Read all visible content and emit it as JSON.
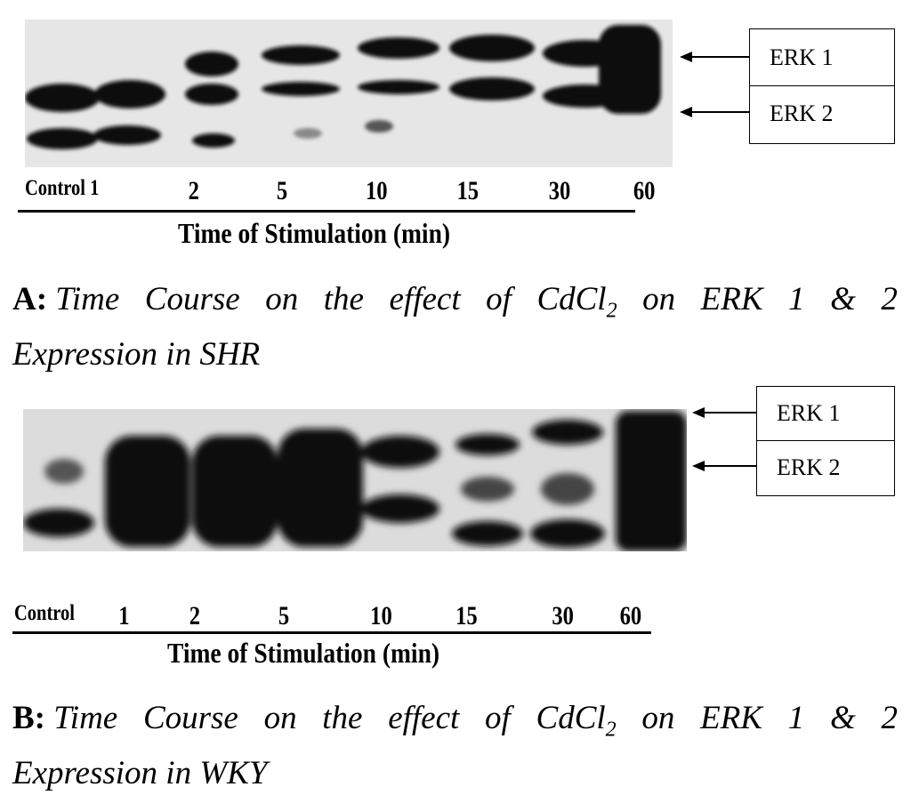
{
  "panels": [
    {
      "id": "A",
      "lanes": [
        "Control 1",
        "2",
        "5",
        "10",
        "15",
        "30",
        "60"
      ],
      "axis_title": "Time of Stimulation (min)",
      "legend": [
        "ERK 1",
        "ERK 2"
      ],
      "caption": {
        "letter": "A:",
        "words": [
          "Time",
          "Course",
          "on",
          "the",
          "effect",
          "of",
          "CdCl",
          "on",
          "ERK",
          "1",
          "&",
          "2"
        ],
        "subscript": "2",
        "line2": "Expression in SHR"
      }
    },
    {
      "id": "B",
      "lanes": [
        "Control",
        "1",
        "2",
        "5",
        "10",
        "15",
        "30",
        "60"
      ],
      "axis_title": "Time of Stimulation (min)",
      "legend": [
        "ERK 1",
        "ERK 2"
      ],
      "caption": {
        "letter": "B:",
        "words": [
          "Time",
          "Course",
          "on",
          "the",
          "effect",
          "of",
          "CdCl",
          "on",
          "ERK",
          "1",
          "&",
          "2"
        ],
        "subscript": "2",
        "line2": "Expression in WKY"
      }
    }
  ],
  "colors": {
    "ink": "#000000",
    "blot_bg_a": "#e4e4e4",
    "blot_bg_b": "#d8d8d8",
    "band": "#111111"
  }
}
